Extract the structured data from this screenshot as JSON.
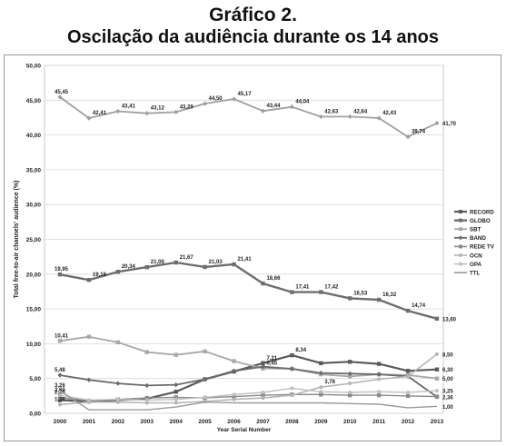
{
  "figure": {
    "title": "Gráfico 2.",
    "subtitle": "Oscilação da audiência durante os 14 anos"
  },
  "chart_data": {
    "type": "line",
    "xlabel": "Year Serial Number",
    "ylabel": "Total free-to-air channels' audience (%)",
    "ylim": [
      0,
      50
    ],
    "yticks": [
      "0,00",
      "5,00",
      "10,00",
      "15,00",
      "20,00",
      "25,00",
      "30,00",
      "35,00",
      "40,00",
      "45,00",
      "50,00"
    ],
    "x": [
      "2000",
      "2001",
      "2002",
      "2003",
      "2004",
      "2005",
      "2006",
      "2007",
      "2008",
      "2009",
      "2010",
      "2011",
      "2012",
      "2013"
    ],
    "grid": true,
    "legend_position": "right",
    "series": [
      {
        "name": "RECORD",
        "values": [
          1.9,
          1.7,
          1.9,
          2.1,
          3.1,
          4.9,
          6.0,
          7.21,
          8.34,
          7.2,
          7.4,
          7.1,
          6.1,
          6.3
        ],
        "labels": {
          "7": "7,21",
          "8": "8,34",
          "13": "6,30"
        },
        "color": "#5a5a5a",
        "width": 2.2,
        "marker": "square"
      },
      {
        "name": "GLOBO",
        "values": [
          19.95,
          19.16,
          20.34,
          21.0,
          21.67,
          21.03,
          21.41,
          18.66,
          17.41,
          17.42,
          16.53,
          16.32,
          14.74,
          13.6
        ],
        "labels": {
          "0": "19,95",
          "1": "19,16",
          "2": "20,34",
          "3": "21,00",
          "4": "21,67",
          "5": "21,03",
          "6": "21,41",
          "7": "18,66",
          "8": "17,41",
          "9": "17,42",
          "10": "16,53",
          "11": "16,32",
          "12": "14,74",
          "13": "13,60"
        },
        "color": "#6e6e6e",
        "width": 2.4,
        "marker": "square"
      },
      {
        "name": "SBT",
        "values": [
          10.41,
          11.0,
          10.2,
          8.8,
          8.4,
          8.9,
          7.5,
          6.45,
          6.4,
          5.6,
          5.3,
          5.6,
          5.5,
          5.0
        ],
        "labels": {
          "0": "10,41",
          "7": "6,45",
          "13": "5,00"
        },
        "color": "#a8a8a8",
        "width": 1.8,
        "marker": "square"
      },
      {
        "name": "BAND",
        "values": [
          5.48,
          4.8,
          4.3,
          4.0,
          4.1,
          4.9,
          6.1,
          6.7,
          6.4,
          5.8,
          5.7,
          5.6,
          5.3,
          2.36
        ],
        "labels": {
          "0": "5,48",
          "13": "2,36"
        },
        "color": "#6a6a6a",
        "width": 1.8,
        "marker": "diamond"
      },
      {
        "name": "REDE TV",
        "values": [
          2.28,
          1.8,
          2.0,
          2.2,
          2.3,
          2.2,
          2.4,
          2.6,
          2.7,
          2.7,
          2.6,
          2.6,
          2.5,
          2.4
        ],
        "labels": {
          "0": "2,28"
        },
        "color": "#8a8a8a",
        "width": 1.4,
        "marker": "square"
      },
      {
        "name": "OCN",
        "values": [
          1.26,
          1.6,
          1.6,
          1.5,
          1.5,
          1.7,
          2.0,
          2.2,
          2.6,
          3.76,
          4.3,
          4.9,
          5.3,
          8.5
        ],
        "labels": {
          "0": "1,26",
          "9": "3,76",
          "13": "8,50"
        },
        "color": "#b5b5b5",
        "width": 1.6,
        "marker": "circle"
      },
      {
        "name": "OPA",
        "values": [
          2.6,
          1.9,
          2.0,
          1.9,
          2.0,
          2.3,
          2.7,
          3.0,
          3.6,
          3.1,
          3.0,
          3.1,
          3.0,
          3.25
        ],
        "labels": {
          "0": "2,60",
          "13": "3,25"
        },
        "color": "#c0c0c0",
        "width": 1.4,
        "marker": "circle"
      },
      {
        "name": "TTL",
        "values": [
          3.26,
          0.5,
          0.5,
          0.5,
          0.9,
          1.6,
          1.5,
          1.5,
          1.5,
          1.5,
          1.4,
          1.3,
          0.8,
          1.0
        ],
        "labels": {
          "0": "3,26",
          "13": "1,00"
        },
        "color": "#9a9a9a",
        "width": 1.4,
        "marker": "none"
      },
      {
        "name": "",
        "values": [
          45.45,
          42.41,
          43.41,
          43.12,
          43.29,
          44.5,
          45.17,
          43.44,
          44.04,
          42.63,
          42.64,
          42.43,
          39.74,
          41.7
        ],
        "labels": {
          "0": "45,45",
          "1": "42,41",
          "2": "43,41",
          "3": "43,12",
          "4": "43,29",
          "5": "44,50",
          "6": "45,17",
          "7": "43,44",
          "8": "44,04",
          "9": "42,63",
          "10": "42,64",
          "11": "42,43",
          "12": "39,74",
          "13": "41,70"
        },
        "color": "#a0a0a0",
        "width": 1.8,
        "marker": "diamond"
      }
    ]
  }
}
